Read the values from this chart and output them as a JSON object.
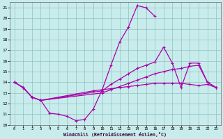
{
  "xlabel": "Windchill (Refroidissement éolien,°C)",
  "bg_color": "#c8ecec",
  "line_color": "#aa00aa",
  "grid_color": "#90c0c0",
  "xlim": [
    -0.5,
    23.5
  ],
  "ylim": [
    10,
    21.5
  ],
  "xticks": [
    0,
    1,
    2,
    3,
    4,
    5,
    6,
    7,
    8,
    9,
    10,
    11,
    12,
    13,
    14,
    15,
    16,
    17,
    18,
    19,
    20,
    21,
    22,
    23
  ],
  "yticks": [
    10,
    11,
    12,
    13,
    14,
    15,
    16,
    17,
    18,
    19,
    20,
    21
  ],
  "line1_x": [
    0,
    1,
    2,
    3,
    4,
    5,
    6,
    7,
    8,
    9,
    10,
    11,
    12,
    13,
    14,
    15,
    16
  ],
  "line1_y": [
    14.0,
    13.5,
    12.6,
    12.3,
    11.1,
    11.0,
    10.8,
    10.4,
    10.5,
    11.5,
    13.3,
    15.6,
    17.8,
    19.2,
    21.2,
    21.0,
    20.2
  ],
  "line2_x": [
    0,
    1,
    2,
    3,
    10,
    11,
    12,
    13,
    14,
    15,
    16,
    17,
    18,
    19,
    20,
    21,
    22,
    23
  ],
  "line2_y": [
    14.0,
    13.5,
    12.6,
    12.3,
    13.2,
    13.8,
    14.3,
    14.8,
    15.3,
    15.6,
    15.9,
    17.3,
    15.8,
    13.5,
    15.8,
    15.8,
    14.0,
    13.5
  ],
  "line3_x": [
    0,
    1,
    2,
    3,
    10,
    11,
    12,
    13,
    14,
    15,
    16,
    17,
    18,
    19,
    20,
    21,
    22,
    23
  ],
  "line3_y": [
    14.0,
    13.5,
    12.6,
    12.3,
    13.0,
    13.3,
    13.6,
    13.9,
    14.2,
    14.5,
    14.8,
    15.0,
    15.2,
    15.3,
    15.5,
    15.6,
    14.0,
    13.5
  ],
  "line4_x": [
    0,
    1,
    2,
    3,
    9,
    10,
    11,
    12,
    13,
    14,
    15,
    16,
    17,
    18,
    19,
    20,
    21,
    22,
    23
  ],
  "line4_y": [
    14.0,
    13.5,
    12.6,
    12.3,
    13.2,
    13.3,
    13.4,
    13.5,
    13.6,
    13.7,
    13.8,
    13.9,
    13.9,
    13.9,
    13.9,
    13.8,
    13.7,
    13.8,
    13.5
  ]
}
